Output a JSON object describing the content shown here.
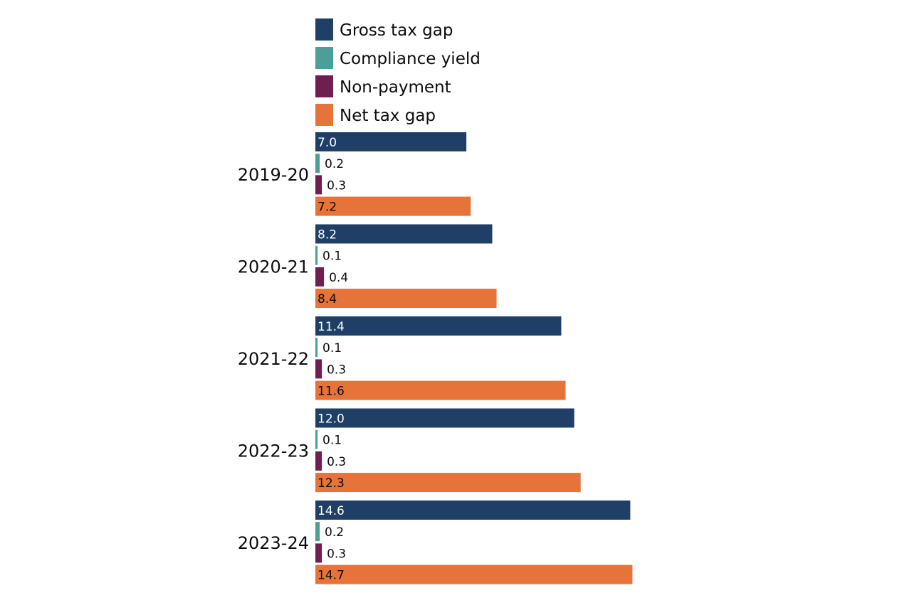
{
  "chart_data": {
    "type": "bar",
    "orientation": "horizontal",
    "categories": [
      "2019-20",
      "2020-21",
      "2021-22",
      "2022-23",
      "2023-24"
    ],
    "series": [
      {
        "name": "Gross tax gap",
        "color": "#1f3f66",
        "values": [
          7.0,
          8.2,
          11.4,
          12.0,
          14.6
        ],
        "labels": [
          "7.0",
          "8.2",
          "11.4",
          "12.0",
          "14.6"
        ]
      },
      {
        "name": "Compliance yield",
        "color": "#4e9e98",
        "values": [
          0.2,
          0.1,
          0.1,
          0.1,
          0.2
        ],
        "labels": [
          "0.2",
          "0.1",
          "0.1",
          "0.1",
          "0.2"
        ]
      },
      {
        "name": "Non-payment",
        "color": "#6e1f4f",
        "values": [
          0.3,
          0.4,
          0.3,
          0.3,
          0.3
        ],
        "labels": [
          "0.3",
          "0.4",
          "0.3",
          "0.3",
          "0.3"
        ]
      },
      {
        "name": "Net tax gap",
        "color": "#e5733a",
        "values": [
          7.2,
          8.4,
          11.6,
          12.3,
          14.7
        ],
        "labels": [
          "7.2",
          "8.4",
          "11.6",
          "12.3",
          "14.7"
        ]
      }
    ],
    "title": "",
    "xlabel": "",
    "ylabel": "",
    "xlim": [
      0,
      15
    ],
    "grid": false,
    "legend": "top-left"
  }
}
